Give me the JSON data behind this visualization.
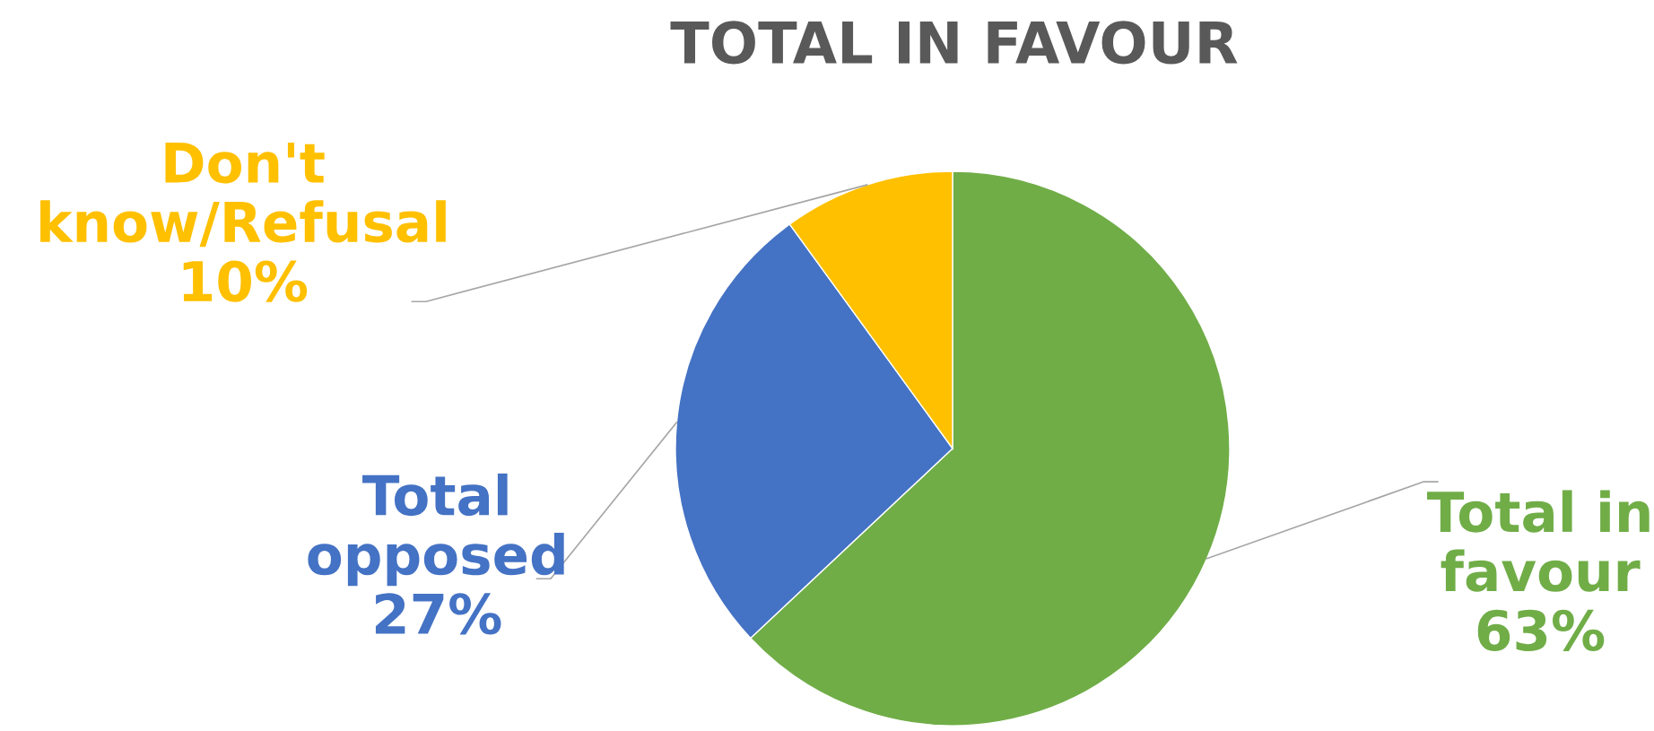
{
  "chart_data": {
    "type": "pie",
    "title": "TOTAL IN FAVOUR",
    "categories": [
      "Total in favour",
      "Total opposed",
      "Don't know/Refusal"
    ],
    "values": [
      63,
      27,
      10
    ],
    "colors": [
      "#70ad47",
      "#4472c4",
      "#ffc000"
    ],
    "value_labels": [
      "63%",
      "27%",
      "10%"
    ],
    "legend": false
  }
}
